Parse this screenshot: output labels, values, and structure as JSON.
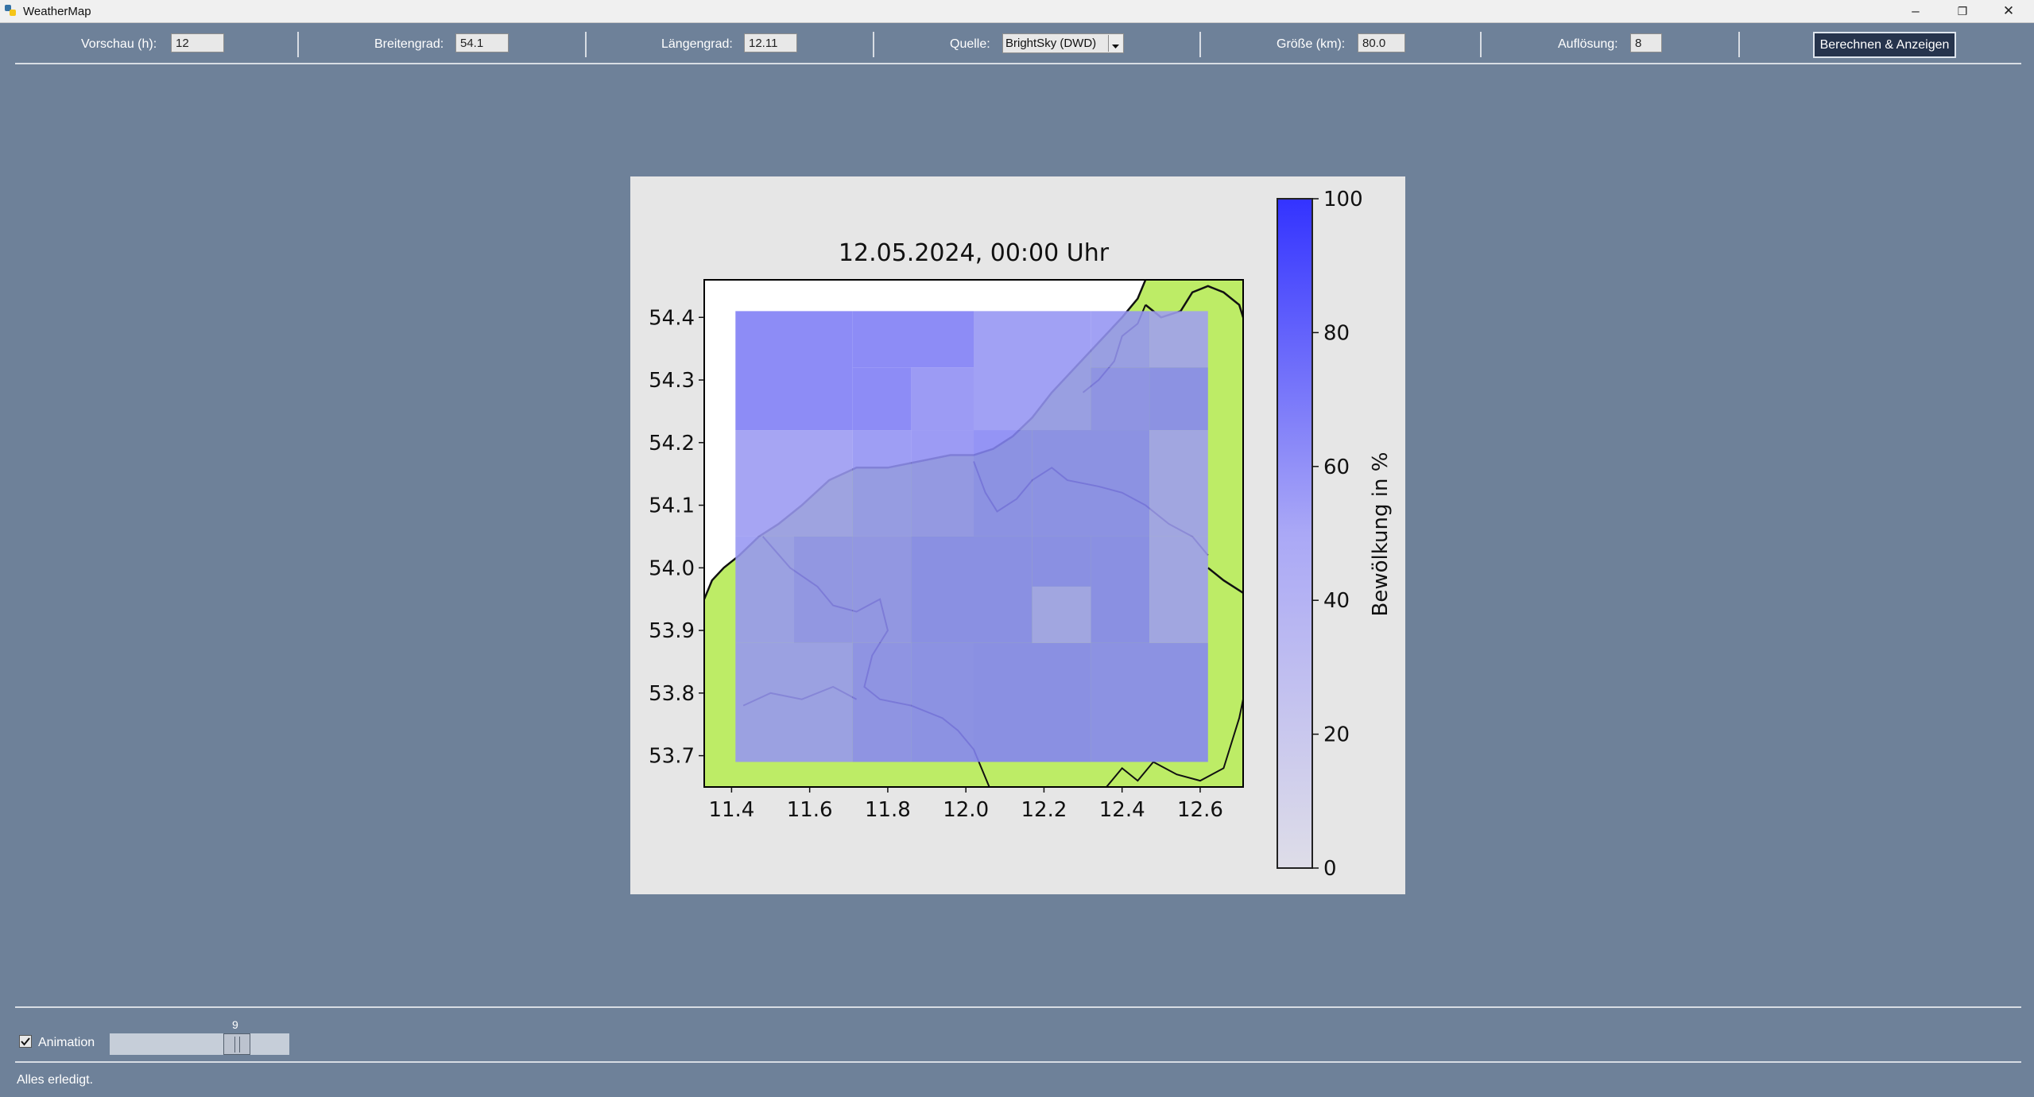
{
  "window": {
    "title": "WeatherMap",
    "controls": [
      "–",
      "❐",
      "✕"
    ]
  },
  "toolbar": {
    "vorschau_label": "Vorschau (h):",
    "vorschau_value": "12",
    "breite_label": "Breitengrad:",
    "breite_value": "54.1",
    "laenge_label": "Längengrad:",
    "laenge_value": "12.11",
    "quelle_label": "Quelle:",
    "quelle_value": "BrightSky (DWD)",
    "groesse_label": "Größe (km):",
    "groesse_value": "80.0",
    "aufloesung_label": "Auflösung:",
    "aufloesung_value": "8",
    "button_label": "Berechnen & Anzeigen"
  },
  "footer": {
    "animation_label": "Animation",
    "animation_checked": true,
    "slider_value": "9",
    "status": "Alles erledigt."
  },
  "chart_data": {
    "type": "heatmap",
    "title": "12.05.2024, 00:00 Uhr",
    "xlim": [
      11.33,
      12.71
    ],
    "ylim": [
      53.65,
      54.46
    ],
    "x_ticks": [
      "11.4",
      "11.6",
      "11.8",
      "12.0",
      "12.2",
      "12.4",
      "12.6"
    ],
    "y_ticks": [
      "53.7",
      "53.8",
      "53.9",
      "54.0",
      "54.1",
      "54.2",
      "54.3",
      "54.4"
    ],
    "x_tick_values": [
      11.4,
      11.6,
      11.8,
      12.0,
      12.2,
      12.4,
      12.6
    ],
    "y_tick_values": [
      53.7,
      53.8,
      53.9,
      54.0,
      54.1,
      54.2,
      54.3,
      54.4
    ],
    "colorbar": {
      "label": "Bewölkung in %",
      "min": 0,
      "max": 100,
      "ticks": [
        "0",
        "20",
        "40",
        "60",
        "80",
        "100"
      ],
      "tick_values": [
        0,
        20,
        40,
        60,
        80,
        100
      ]
    },
    "land_color": "#bdec66",
    "low_color": "#dedde8",
    "high_color": "#3333ff",
    "cells": [
      {
        "x0": 11.41,
        "x1": 11.71,
        "y0": 54.22,
        "y1": 54.41,
        "v": 57
      },
      {
        "x0": 11.71,
        "x1": 12.02,
        "y0": 54.32,
        "y1": 54.41,
        "v": 57
      },
      {
        "x0": 11.71,
        "x1": 11.86,
        "y0": 54.22,
        "y1": 54.32,
        "v": 57
      },
      {
        "x0": 11.86,
        "x1": 12.02,
        "y0": 54.22,
        "y1": 54.32,
        "v": 47
      },
      {
        "x0": 12.02,
        "x1": 12.32,
        "y0": 54.22,
        "y1": 54.41,
        "v": 43
      },
      {
        "x0": 12.32,
        "x1": 12.47,
        "y0": 54.32,
        "y1": 54.41,
        "v": 43
      },
      {
        "x0": 12.47,
        "x1": 12.62,
        "y0": 54.32,
        "y1": 54.41,
        "v": 37
      },
      {
        "x0": 12.32,
        "x1": 12.47,
        "y0": 54.22,
        "y1": 54.32,
        "v": 50
      },
      {
        "x0": 12.47,
        "x1": 12.62,
        "y0": 54.22,
        "y1": 54.32,
        "v": 52
      },
      {
        "x0": 11.41,
        "x1": 11.71,
        "y0": 54.05,
        "y1": 54.22,
        "v": 40
      },
      {
        "x0": 11.71,
        "x1": 11.86,
        "y0": 54.05,
        "y1": 54.22,
        "v": 45
      },
      {
        "x0": 11.86,
        "x1": 12.02,
        "y0": 54.05,
        "y1": 54.22,
        "v": 47
      },
      {
        "x0": 12.02,
        "x1": 12.17,
        "y0": 54.05,
        "y1": 54.22,
        "v": 52
      },
      {
        "x0": 12.17,
        "x1": 12.47,
        "y0": 54.05,
        "y1": 54.22,
        "v": 52
      },
      {
        "x0": 12.47,
        "x1": 12.62,
        "y0": 54.05,
        "y1": 54.22,
        "v": 38
      },
      {
        "x0": 11.41,
        "x1": 11.56,
        "y0": 53.88,
        "y1": 54.05,
        "v": 42
      },
      {
        "x0": 11.56,
        "x1": 11.71,
        "y0": 53.88,
        "y1": 54.05,
        "v": 48
      },
      {
        "x0": 11.71,
        "x1": 11.86,
        "y0": 53.88,
        "y1": 54.05,
        "v": 48
      },
      {
        "x0": 11.86,
        "x1": 12.17,
        "y0": 53.88,
        "y1": 54.05,
        "v": 53
      },
      {
        "x0": 12.17,
        "x1": 12.32,
        "y0": 53.88,
        "y1": 53.97,
        "v": 38
      },
      {
        "x0": 12.17,
        "x1": 12.32,
        "y0": 53.97,
        "y1": 54.05,
        "v": 53
      },
      {
        "x0": 12.32,
        "x1": 12.47,
        "y0": 53.88,
        "y1": 54.05,
        "v": 53
      },
      {
        "x0": 12.47,
        "x1": 12.62,
        "y0": 53.88,
        "y1": 54.05,
        "v": 38
      },
      {
        "x0": 11.41,
        "x1": 11.71,
        "y0": 53.69,
        "y1": 53.88,
        "v": 42
      },
      {
        "x0": 11.71,
        "x1": 11.86,
        "y0": 53.69,
        "y1": 53.88,
        "v": 50
      },
      {
        "x0": 11.86,
        "x1": 12.02,
        "y0": 53.69,
        "y1": 53.88,
        "v": 52
      },
      {
        "x0": 12.02,
        "x1": 12.32,
        "y0": 53.69,
        "y1": 53.88,
        "v": 53
      },
      {
        "x0": 12.32,
        "x1": 12.62,
        "y0": 53.69,
        "y1": 53.88,
        "v": 52
      }
    ],
    "land_polygon": [
      [
        11.33,
        53.95
      ],
      [
        11.35,
        53.98
      ],
      [
        11.38,
        54.0
      ],
      [
        11.42,
        54.02
      ],
      [
        11.47,
        54.05
      ],
      [
        11.52,
        54.07
      ],
      [
        11.58,
        54.1
      ],
      [
        11.65,
        54.14
      ],
      [
        11.72,
        54.16
      ],
      [
        11.8,
        54.16
      ],
      [
        11.88,
        54.17
      ],
      [
        11.96,
        54.18
      ],
      [
        12.02,
        54.18
      ],
      [
        12.07,
        54.19
      ],
      [
        12.12,
        54.21
      ],
      [
        12.17,
        54.24
      ],
      [
        12.22,
        54.28
      ],
      [
        12.28,
        54.32
      ],
      [
        12.34,
        54.36
      ],
      [
        12.4,
        54.4
      ],
      [
        12.44,
        54.43
      ],
      [
        12.46,
        54.46
      ],
      [
        12.71,
        54.46
      ],
      [
        12.71,
        53.65
      ],
      [
        11.33,
        53.65
      ]
    ],
    "coast_lines": [
      [
        [
          11.33,
          53.95
        ],
        [
          11.35,
          53.98
        ],
        [
          11.38,
          54.0
        ],
        [
          11.42,
          54.02
        ],
        [
          11.47,
          54.05
        ],
        [
          11.52,
          54.07
        ],
        [
          11.58,
          54.1
        ],
        [
          11.65,
          54.14
        ],
        [
          11.72,
          54.16
        ],
        [
          11.8,
          54.16
        ],
        [
          11.88,
          54.17
        ],
        [
          11.96,
          54.18
        ],
        [
          12.02,
          54.18
        ],
        [
          12.07,
          54.19
        ],
        [
          12.12,
          54.21
        ],
        [
          12.17,
          54.24
        ],
        [
          12.22,
          54.28
        ],
        [
          12.28,
          54.32
        ],
        [
          12.34,
          54.36
        ],
        [
          12.4,
          54.4
        ],
        [
          12.44,
          54.43
        ],
        [
          12.46,
          54.46
        ]
      ],
      [
        [
          12.46,
          54.42
        ],
        [
          12.5,
          54.4
        ],
        [
          12.55,
          54.41
        ],
        [
          12.58,
          54.44
        ],
        [
          12.62,
          54.45
        ],
        [
          12.66,
          54.44
        ],
        [
          12.7,
          54.42
        ],
        [
          12.71,
          54.4
        ]
      ],
      [
        [
          12.62,
          54.0
        ],
        [
          12.66,
          53.98
        ],
        [
          12.71,
          53.96
        ]
      ]
    ],
    "border_lines": [
      [
        [
          11.48,
          54.05
        ],
        [
          11.55,
          54.0
        ],
        [
          11.62,
          53.97
        ],
        [
          11.66,
          53.94
        ],
        [
          11.72,
          53.93
        ],
        [
          11.78,
          53.95
        ],
        [
          11.8,
          53.9
        ],
        [
          11.76,
          53.86
        ],
        [
          11.74,
          53.81
        ],
        [
          11.78,
          53.79
        ],
        [
          11.86,
          53.78
        ],
        [
          11.94,
          53.76
        ],
        [
          11.98,
          53.74
        ],
        [
          12.02,
          53.71
        ],
        [
          12.06,
          53.65
        ]
      ],
      [
        [
          11.43,
          53.78
        ],
        [
          11.5,
          53.8
        ],
        [
          11.58,
          53.79
        ],
        [
          11.66,
          53.81
        ],
        [
          11.72,
          53.79
        ]
      ],
      [
        [
          12.02,
          54.17
        ],
        [
          12.05,
          54.12
        ],
        [
          12.08,
          54.09
        ],
        [
          12.13,
          54.11
        ],
        [
          12.17,
          54.14
        ],
        [
          12.22,
          54.16
        ],
        [
          12.26,
          54.14
        ],
        [
          12.34,
          54.13
        ],
        [
          12.4,
          54.12
        ],
        [
          12.46,
          54.1
        ],
        [
          12.52,
          54.07
        ],
        [
          12.58,
          54.05
        ],
        [
          12.62,
          54.02
        ]
      ],
      [
        [
          12.46,
          54.42
        ],
        [
          12.44,
          54.39
        ],
        [
          12.4,
          54.37
        ],
        [
          12.38,
          54.33
        ],
        [
          12.34,
          54.3
        ],
        [
          12.3,
          54.28
        ]
      ],
      [
        [
          12.36,
          53.65
        ],
        [
          12.4,
          53.68
        ],
        [
          12.44,
          53.66
        ],
        [
          12.48,
          53.69
        ],
        [
          12.54,
          53.67
        ],
        [
          12.6,
          53.66
        ],
        [
          12.66,
          53.68
        ],
        [
          12.68,
          53.72
        ],
        [
          12.7,
          53.76
        ],
        [
          12.71,
          53.79
        ]
      ]
    ]
  }
}
